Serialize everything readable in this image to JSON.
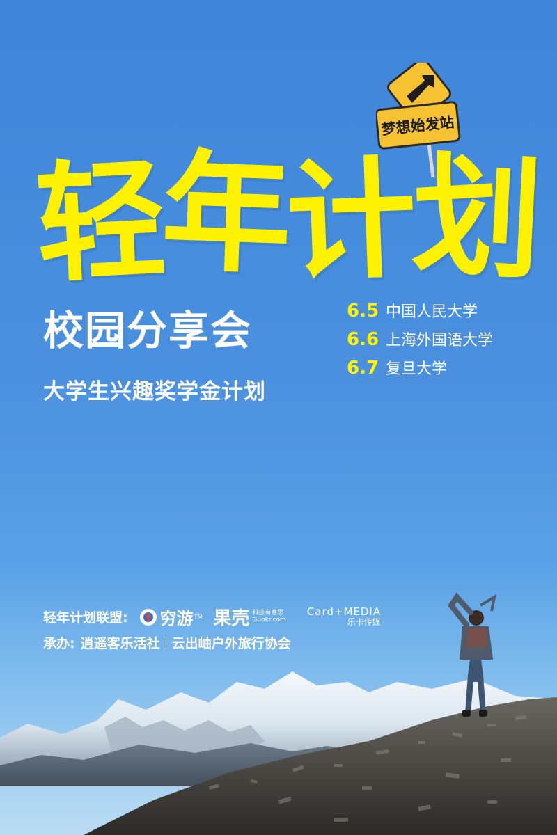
{
  "sign": {
    "text": "梦想始发站"
  },
  "title": {
    "chars": [
      "轻",
      "年",
      "计",
      "划"
    ]
  },
  "subtitle": "校园分享会",
  "tagline": "大学生兴趣奖学金计划",
  "schedule": [
    {
      "date": "6.5",
      "name": "中国人民大学"
    },
    {
      "date": "6.6",
      "name": "上海外国语大学"
    },
    {
      "date": "6.7",
      "name": "复旦大学"
    }
  ],
  "alliance": {
    "label": "轻年计划联盟:",
    "logos": {
      "qiongyou": {
        "text": "穷游",
        "tm": "TM"
      },
      "guokr": {
        "text": "果壳",
        "tag": "科技有意思",
        "url": "Guokr.com"
      },
      "cardmedia": {
        "text": "Card+MEDIA",
        "sub": "乐卡传媒"
      }
    }
  },
  "organizers": {
    "label": "承办:",
    "first": "逍遥客乐活社",
    "second": "云出岫户外旅行协会"
  },
  "colors": {
    "title": "#fff200",
    "sky": "#4a90df",
    "sign": "#f7c232"
  }
}
